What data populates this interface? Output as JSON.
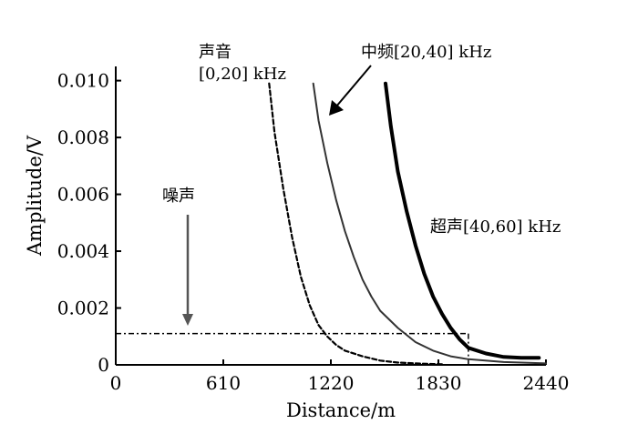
{
  "chart_data": {
    "type": "line",
    "xlabel": "Distance/m",
    "ylabel": "Amplitude/V",
    "xlim": [
      0,
      2440
    ],
    "ylim": [
      0,
      0.0105
    ],
    "x_ticks": [
      0,
      610,
      1220,
      1830,
      2440
    ],
    "x_tick_labels": [
      "0",
      "610",
      "1220",
      "1830",
      "2440"
    ],
    "y_ticks": [
      0,
      0.002,
      0.004,
      0.006,
      0.008,
      0.01
    ],
    "y_tick_labels": [
      "0",
      "0.002",
      "0.004",
      "0.006",
      "0.008",
      "0.010"
    ],
    "series": [
      {
        "name": "声音 [0,20] kHz",
        "style": "dashed",
        "color": "#000000",
        "points": [
          [
            870,
            0.0099
          ],
          [
            900,
            0.0082
          ],
          [
            950,
            0.0062
          ],
          [
            1000,
            0.0045
          ],
          [
            1050,
            0.0031
          ],
          [
            1100,
            0.0021
          ],
          [
            1150,
            0.0014
          ],
          [
            1200,
            0.001
          ],
          [
            1250,
            0.0007
          ],
          [
            1300,
            0.0005
          ],
          [
            1400,
            0.0003
          ],
          [
            1500,
            0.00015
          ],
          [
            1600,
            8e-05
          ],
          [
            1700,
            5e-05
          ],
          [
            1800,
            3e-05
          ],
          [
            1850,
            2e-05
          ]
        ]
      },
      {
        "name": "中频[20,40] kHz",
        "style": "solid-thin",
        "color": "#333333",
        "points": [
          [
            1120,
            0.0099
          ],
          [
            1150,
            0.0086
          ],
          [
            1200,
            0.0071
          ],
          [
            1250,
            0.0058
          ],
          [
            1300,
            0.0047
          ],
          [
            1350,
            0.0038
          ],
          [
            1400,
            0.003
          ],
          [
            1450,
            0.0024
          ],
          [
            1500,
            0.0019
          ],
          [
            1600,
            0.0013
          ],
          [
            1700,
            0.0008
          ],
          [
            1800,
            0.0005
          ],
          [
            1900,
            0.0003
          ],
          [
            2000,
            0.0002
          ],
          [
            2200,
            0.0001
          ],
          [
            2440,
            5e-05
          ]
        ]
      },
      {
        "name": "超声[40,60] kHz",
        "style": "solid-thick",
        "color": "#000000",
        "points": [
          [
            1530,
            0.0099
          ],
          [
            1560,
            0.0084
          ],
          [
            1600,
            0.0068
          ],
          [
            1650,
            0.0054
          ],
          [
            1700,
            0.0042
          ],
          [
            1750,
            0.0032
          ],
          [
            1800,
            0.0024
          ],
          [
            1850,
            0.0018
          ],
          [
            1900,
            0.0013
          ],
          [
            1950,
            0.0009
          ],
          [
            2000,
            0.0006
          ],
          [
            2100,
            0.0004
          ],
          [
            2200,
            0.00028
          ],
          [
            2300,
            0.00025
          ],
          [
            2400,
            0.00025
          ]
        ]
      }
    ],
    "reference_lines": {
      "horizontal_y": 0.0011,
      "vertical_x": 2000,
      "style": "dash-dot"
    },
    "annotations": {
      "sound_line1": "声音",
      "sound_line2": "[0,20] kHz",
      "mid": "中频[20,40] kHz",
      "ultra": "超声[40,60] kHz",
      "noise": "噪声"
    },
    "grid": false
  }
}
